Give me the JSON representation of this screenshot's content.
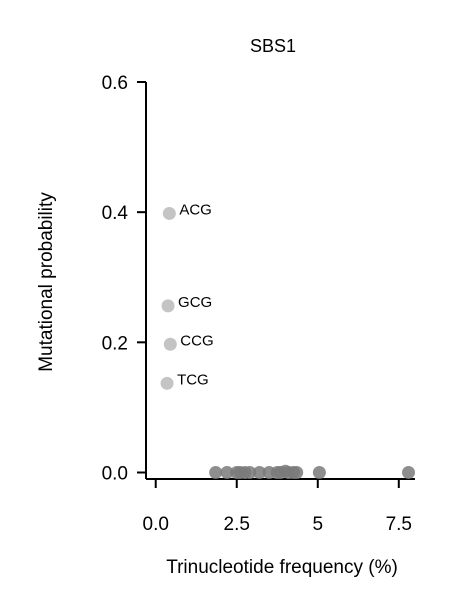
{
  "chart_data": {
    "type": "scatter",
    "title": "SBS1",
    "xlabel": "Trinucleotide frequency (%)",
    "ylabel": "Mutational probability",
    "xlim": [
      -0.3,
      8.0
    ],
    "ylim": [
      -0.01,
      0.6
    ],
    "xticks": [
      0.0,
      2.5,
      5.0,
      7.5
    ],
    "xtick_labels": [
      "0.0",
      "2.5",
      "5",
      "7.5"
    ],
    "yticks": [
      0.0,
      0.2,
      0.4,
      0.6
    ],
    "ytick_labels": [
      "0.0",
      "0.2",
      "0.4",
      "0.6"
    ],
    "grid": false,
    "legend": "none",
    "colors": {
      "highlighted": "#c4c4c4",
      "other": "#7a7a7a"
    },
    "highlighted_points": [
      {
        "label": "ACG",
        "x": 0.42,
        "y": 0.398
      },
      {
        "label": "GCG",
        "x": 0.38,
        "y": 0.256
      },
      {
        "label": "CCG",
        "x": 0.45,
        "y": 0.197
      },
      {
        "label": "TCG",
        "x": 0.35,
        "y": 0.137
      }
    ],
    "other_points": [
      {
        "x": 1.85,
        "y": 0.0
      },
      {
        "x": 2.2,
        "y": 0.0
      },
      {
        "x": 2.5,
        "y": 0.0
      },
      {
        "x": 2.6,
        "y": 0.0
      },
      {
        "x": 2.75,
        "y": 0.0
      },
      {
        "x": 2.9,
        "y": 0.0
      },
      {
        "x": 3.2,
        "y": 0.0
      },
      {
        "x": 3.5,
        "y": 0.0
      },
      {
        "x": 3.75,
        "y": 0.0
      },
      {
        "x": 3.85,
        "y": 0.0
      },
      {
        "x": 4.0,
        "y": 0.002
      },
      {
        "x": 4.1,
        "y": 0.0
      },
      {
        "x": 4.25,
        "y": 0.0
      },
      {
        "x": 4.35,
        "y": 0.0
      },
      {
        "x": 5.05,
        "y": 0.0
      },
      {
        "x": 7.8,
        "y": 0.0
      }
    ]
  }
}
